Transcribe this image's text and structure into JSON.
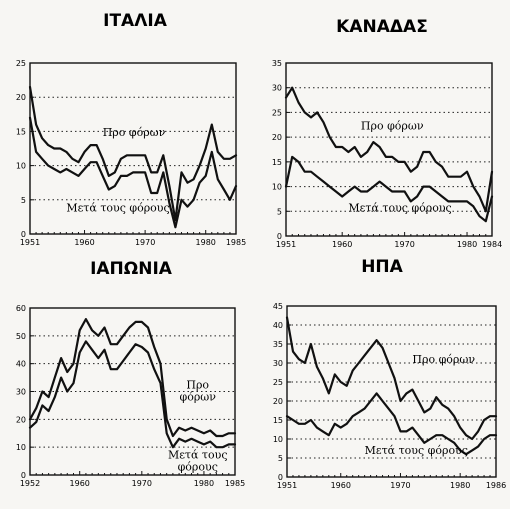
{
  "chart_data": [
    {
      "type": "line",
      "title": "ΙΤΑΛΙΑ",
      "xlim": [
        1951,
        1985
      ],
      "ylim": [
        0,
        25
      ],
      "yticks": [
        0,
        5,
        10,
        15,
        20,
        25
      ],
      "xticks": [
        1951,
        1960,
        1970,
        1980,
        1985
      ],
      "grid": true,
      "series": [
        {
          "name": "Προ φόρων",
          "x": [
            1951,
            1952,
            1953,
            1954,
            1955,
            1956,
            1957,
            1958,
            1959,
            1960,
            1961,
            1962,
            1963,
            1964,
            1965,
            1966,
            1967,
            1968,
            1969,
            1970,
            1971,
            1972,
            1973,
            1974,
            1975,
            1976,
            1977,
            1978,
            1979,
            1980,
            1981,
            1982,
            1983,
            1984,
            1985
          ],
          "values": [
            21.5,
            16,
            14,
            13,
            12.5,
            12.5,
            12,
            11,
            10.5,
            12,
            13,
            13,
            11,
            8.5,
            9,
            11,
            11.5,
            11.5,
            11.5,
            11.5,
            9,
            9,
            11.5,
            7,
            2,
            9,
            7.5,
            8,
            10,
            12.5,
            16,
            12,
            11,
            11,
            11.5
          ]
        },
        {
          "name": "Μετά τους φόρους",
          "x": [
            1951,
            1952,
            1953,
            1954,
            1955,
            1956,
            1957,
            1958,
            1959,
            1960,
            1961,
            1962,
            1963,
            1964,
            1965,
            1966,
            1967,
            1968,
            1969,
            1970,
            1971,
            1972,
            1973,
            1974,
            1975,
            1976,
            1977,
            1978,
            1979,
            1980,
            1981,
            1982,
            1983,
            1984,
            1985
          ],
          "values": [
            17,
            12,
            11,
            10,
            9.5,
            9,
            9.5,
            9,
            8.5,
            9.5,
            10.5,
            10.5,
            8.5,
            6.5,
            7,
            8.5,
            8.5,
            9,
            9,
            9,
            6,
            6,
            9,
            4.5,
            1,
            5,
            4,
            5,
            7.5,
            8.5,
            12,
            8,
            6.5,
            5,
            7
          ]
        }
      ],
      "labels": {
        "pre": "Προ φόρων",
        "post": "Μετά τους φόρους"
      }
    },
    {
      "type": "line",
      "title": "ΚΑΝΑΔΑΣ",
      "xlim": [
        1951,
        1984
      ],
      "ylim": [
        0,
        35
      ],
      "yticks": [
        0,
        5,
        10,
        15,
        20,
        25,
        30,
        35
      ],
      "xticks": [
        1951,
        1960,
        1970,
        1980,
        1984
      ],
      "grid": true,
      "series": [
        {
          "name": "Προ φόρων",
          "x": [
            1951,
            1952,
            1953,
            1954,
            1955,
            1956,
            1957,
            1958,
            1959,
            1960,
            1961,
            1962,
            1963,
            1964,
            1965,
            1966,
            1967,
            1968,
            1969,
            1970,
            1971,
            1972,
            1973,
            1974,
            1975,
            1976,
            1977,
            1978,
            1979,
            1980,
            1981,
            1982,
            1983,
            1984
          ],
          "values": [
            28,
            30,
            27,
            25,
            24,
            25,
            23,
            20,
            18,
            18,
            17,
            18,
            16,
            17,
            19,
            18,
            16,
            16,
            15,
            15,
            13,
            14,
            17,
            17,
            15,
            14,
            12,
            12,
            12,
            13,
            10,
            8,
            5,
            13
          ]
        },
        {
          "name": "Μετά τους φόρους",
          "x": [
            1951,
            1952,
            1953,
            1954,
            1955,
            1956,
            1957,
            1958,
            1959,
            1960,
            1961,
            1962,
            1963,
            1964,
            1965,
            1966,
            1967,
            1968,
            1969,
            1970,
            1971,
            1972,
            1973,
            1974,
            1975,
            1976,
            1977,
            1978,
            1979,
            1980,
            1981,
            1982,
            1983,
            1984
          ],
          "values": [
            10,
            16,
            15,
            13,
            13,
            12,
            11,
            10,
            9,
            8,
            9,
            10,
            9,
            9,
            10,
            11,
            10,
            9,
            9,
            9,
            7,
            8,
            10,
            10,
            9,
            8,
            7,
            7,
            7,
            7,
            6,
            4,
            3,
            8
          ]
        }
      ],
      "labels": {
        "pre": "Προ φόρων",
        "post": "Μετά τους φόρους"
      }
    },
    {
      "type": "line",
      "title": "ΙΑΠΩΝΙΑ",
      "xlim": [
        1952,
        1985
      ],
      "ylim": [
        0,
        60
      ],
      "yticks": [
        0,
        10,
        20,
        30,
        40,
        50,
        60
      ],
      "xticks": [
        1952,
        1960,
        1970,
        1980,
        1985
      ],
      "grid": true,
      "series": [
        {
          "name": "Προ φόρων",
          "x": [
            1952,
            1953,
            1954,
            1955,
            1956,
            1957,
            1958,
            1959,
            1960,
            1961,
            1962,
            1963,
            1964,
            1965,
            1966,
            1967,
            1968,
            1969,
            1970,
            1971,
            1972,
            1973,
            1974,
            1975,
            1976,
            1977,
            1978,
            1979,
            1980,
            1981,
            1982,
            1983,
            1984,
            1985
          ],
          "values": [
            20,
            24,
            30,
            28,
            35,
            42,
            37,
            40,
            52,
            56,
            52,
            50,
            53,
            47,
            47,
            50,
            53,
            55,
            55,
            53,
            46,
            40,
            20,
            14,
            17,
            16,
            17,
            16,
            15,
            16,
            14,
            14,
            15,
            15
          ]
        },
        {
          "name": "Μετά τους φόρους",
          "x": [
            1952,
            1953,
            1954,
            1955,
            1956,
            1957,
            1958,
            1959,
            1960,
            1961,
            1962,
            1963,
            1964,
            1965,
            1966,
            1967,
            1968,
            1969,
            1970,
            1971,
            1972,
            1973,
            1974,
            1975,
            1976,
            1977,
            1978,
            1979,
            1980,
            1981,
            1982,
            1983,
            1984,
            1985
          ],
          "values": [
            17,
            19,
            25,
            23,
            28,
            35,
            30,
            33,
            44,
            48,
            45,
            42,
            45,
            38,
            38,
            41,
            44,
            47,
            46,
            44,
            38,
            33,
            15,
            10,
            13,
            12,
            13,
            12,
            11,
            12,
            10,
            10,
            11,
            11
          ]
        }
      ],
      "labels": {
        "pre": "Προ\nφόρων",
        "post": "Μετά τους\nφόρους"
      }
    },
    {
      "type": "line",
      "title": "ΗΠΑ",
      "xlim": [
        1951,
        1986
      ],
      "ylim": [
        0,
        45
      ],
      "yticks": [
        0,
        5,
        10,
        15,
        20,
        25,
        30,
        35,
        40,
        45
      ],
      "xticks": [
        1951,
        1960,
        1970,
        1980,
        1986
      ],
      "grid": true,
      "series": [
        {
          "name": "Προ φόρων",
          "x": [
            1951,
            1952,
            1953,
            1954,
            1955,
            1956,
            1957,
            1958,
            1959,
            1960,
            1961,
            1962,
            1963,
            1964,
            1965,
            1966,
            1967,
            1968,
            1969,
            1970,
            1971,
            1972,
            1973,
            1974,
            1975,
            1976,
            1977,
            1978,
            1979,
            1980,
            1981,
            1982,
            1983,
            1984,
            1985,
            1986
          ],
          "values": [
            42,
            33,
            31,
            30,
            35,
            29,
            26,
            22,
            27,
            25,
            24,
            28,
            30,
            32,
            34,
            36,
            34,
            30,
            26,
            20,
            22,
            23,
            20,
            17,
            18,
            21,
            19,
            18,
            16,
            13,
            11,
            10,
            12,
            15,
            16,
            16
          ]
        },
        {
          "name": "Μετά τους φόρους",
          "x": [
            1951,
            1952,
            1953,
            1954,
            1955,
            1956,
            1957,
            1958,
            1959,
            1960,
            1961,
            1962,
            1963,
            1964,
            1965,
            1966,
            1967,
            1968,
            1969,
            1970,
            1971,
            1972,
            1973,
            1974,
            1975,
            1976,
            1977,
            1978,
            1979,
            1980,
            1981,
            1982,
            1983,
            1984,
            1985,
            1986
          ],
          "values": [
            16,
            15,
            14,
            14,
            15,
            13,
            12,
            11,
            14,
            13,
            14,
            16,
            17,
            18,
            20,
            22,
            20,
            18,
            16,
            12,
            12,
            13,
            11,
            9,
            10,
            11,
            11,
            10,
            9,
            7,
            6,
            7,
            8,
            10,
            11,
            11
          ]
        }
      ],
      "labels": {
        "pre": "Προ φόρων",
        "post": "Μετά τους φόρους"
      }
    }
  ]
}
